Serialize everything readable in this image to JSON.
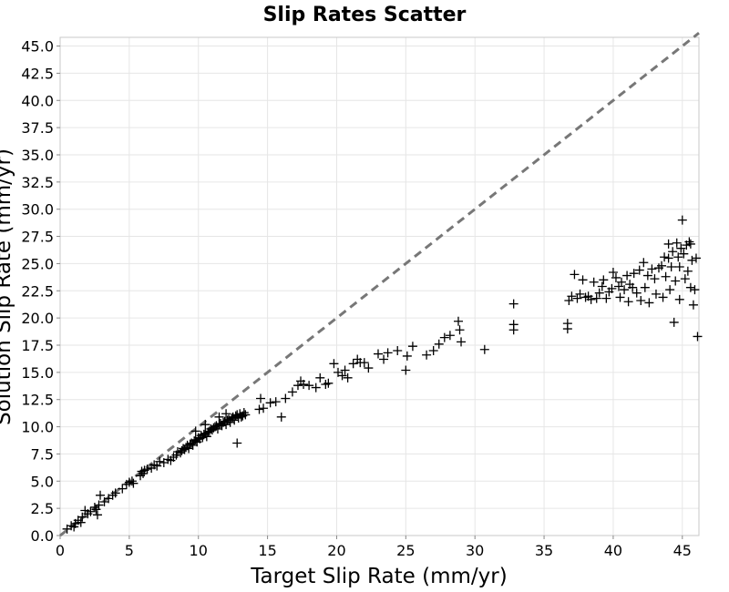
{
  "chart_data": {
    "type": "scatter",
    "title": "Slip Rates Scatter",
    "xlabel": "Target Slip Rate (mm/yr)",
    "ylabel": "Solution Slip Rate (mm/yr)",
    "xlim": [
      0,
      46.2
    ],
    "ylim": [
      0,
      45.8
    ],
    "x_ticks": [
      "0",
      "5",
      "10",
      "15",
      "20",
      "25",
      "30",
      "35",
      "40",
      "45"
    ],
    "y_ticks": [
      "0.0",
      "2.5",
      "5.0",
      "7.5",
      "10.0",
      "12.5",
      "15.0",
      "17.5",
      "20.0",
      "22.5",
      "25.0",
      "27.5",
      "30.0",
      "32.5",
      "35.0",
      "37.5",
      "40.0",
      "42.5",
      "45.0"
    ],
    "grid": true,
    "reference_line": {
      "style": "dashed",
      "color": "#777777",
      "x": [
        0,
        46.2
      ],
      "y": [
        0,
        46.2
      ]
    },
    "marker": "plus",
    "marker_color": "#000000",
    "points": [
      [
        0.5,
        0.6
      ],
      [
        0.8,
        0.9
      ],
      [
        1.0,
        0.8
      ],
      [
        1.1,
        1.1
      ],
      [
        1.3,
        1.4
      ],
      [
        1.5,
        1.2
      ],
      [
        1.6,
        1.7
      ],
      [
        1.8,
        2.3
      ],
      [
        2.0,
        2.0
      ],
      [
        2.2,
        2.2
      ],
      [
        2.5,
        2.6
      ],
      [
        2.6,
        2.4
      ],
      [
        2.8,
        2.8
      ],
      [
        2.9,
        3.7
      ],
      [
        2.7,
        1.9
      ],
      [
        3.2,
        3.1
      ],
      [
        3.5,
        3.4
      ],
      [
        3.8,
        3.7
      ],
      [
        4.0,
        3.9
      ],
      [
        4.5,
        4.3
      ],
      [
        4.8,
        4.7
      ],
      [
        5.0,
        4.9
      ],
      [
        5.2,
        5.0
      ],
      [
        5.3,
        4.8
      ],
      [
        5.8,
        5.5
      ],
      [
        5.9,
        5.9
      ],
      [
        6.0,
        5.7
      ],
      [
        6.1,
        6.0
      ],
      [
        6.3,
        6.1
      ],
      [
        6.6,
        6.2
      ],
      [
        6.8,
        6.5
      ],
      [
        7.0,
        6.4
      ],
      [
        7.2,
        6.8
      ],
      [
        7.5,
        6.7
      ],
      [
        7.8,
        7.0
      ],
      [
        8.0,
        6.9
      ],
      [
        8.2,
        7.2
      ],
      [
        8.4,
        7.4
      ],
      [
        8.5,
        7.7
      ],
      [
        8.7,
        7.6
      ],
      [
        8.8,
        7.8
      ],
      [
        8.9,
        8.0
      ],
      [
        9.0,
        7.9
      ],
      [
        9.1,
        8.1
      ],
      [
        9.2,
        8.3
      ],
      [
        9.3,
        8.0
      ],
      [
        9.4,
        8.4
      ],
      [
        9.5,
        8.5
      ],
      [
        9.6,
        8.3
      ],
      [
        9.7,
        8.7
      ],
      [
        9.8,
        8.8
      ],
      [
        9.9,
        8.6
      ],
      [
        10.0,
        9.0
      ],
      [
        10.1,
        8.9
      ],
      [
        10.2,
        9.2
      ],
      [
        10.3,
        9.0
      ],
      [
        10.4,
        9.3
      ],
      [
        10.5,
        9.4
      ],
      [
        10.6,
        9.1
      ],
      [
        10.7,
        9.5
      ],
      [
        10.8,
        9.6
      ],
      [
        10.9,
        9.8
      ],
      [
        11.0,
        9.7
      ],
      [
        11.1,
        9.9
      ],
      [
        11.2,
        10.0
      ],
      [
        11.3,
        10.1
      ],
      [
        11.4,
        9.8
      ],
      [
        11.5,
        10.2
      ],
      [
        11.6,
        10.3
      ],
      [
        11.7,
        10.1
      ],
      [
        11.8,
        10.4
      ],
      [
        11.9,
        10.5
      ],
      [
        12.0,
        10.2
      ],
      [
        12.1,
        10.6
      ],
      [
        12.2,
        10.7
      ],
      [
        12.3,
        10.4
      ],
      [
        12.4,
        10.8
      ],
      [
        12.5,
        10.9
      ],
      [
        12.6,
        10.6
      ],
      [
        12.7,
        11.0
      ],
      [
        12.8,
        11.1
      ],
      [
        12.9,
        10.8
      ],
      [
        13.0,
        11.2
      ],
      [
        13.1,
        10.9
      ],
      [
        13.2,
        11.0
      ],
      [
        13.3,
        11.3
      ],
      [
        13.4,
        11.1
      ],
      [
        12.8,
        8.5
      ],
      [
        11.5,
        10.9
      ],
      [
        12.0,
        11.2
      ],
      [
        10.5,
        10.2
      ],
      [
        9.8,
        9.6
      ],
      [
        14.5,
        12.6
      ],
      [
        14.4,
        11.6
      ],
      [
        14.7,
        11.7
      ],
      [
        15.2,
        12.2
      ],
      [
        15.6,
        12.3
      ],
      [
        16.0,
        10.9
      ],
      [
        16.3,
        12.6
      ],
      [
        16.8,
        13.2
      ],
      [
        17.2,
        13.8
      ],
      [
        17.4,
        14.2
      ],
      [
        17.6,
        13.9
      ],
      [
        18.0,
        13.8
      ],
      [
        18.5,
        13.6
      ],
      [
        18.8,
        14.5
      ],
      [
        19.2,
        13.9
      ],
      [
        19.4,
        14.0
      ],
      [
        19.8,
        15.8
      ],
      [
        20.1,
        15.0
      ],
      [
        20.4,
        14.7
      ],
      [
        20.6,
        15.2
      ],
      [
        20.8,
        14.5
      ],
      [
        21.2,
        15.8
      ],
      [
        21.5,
        16.2
      ],
      [
        21.7,
        15.9
      ],
      [
        22.0,
        15.9
      ],
      [
        22.3,
        15.4
      ],
      [
        23.0,
        16.7
      ],
      [
        23.4,
        16.2
      ],
      [
        23.7,
        16.8
      ],
      [
        24.4,
        17.0
      ],
      [
        25.0,
        15.2
      ],
      [
        25.1,
        16.5
      ],
      [
        25.5,
        17.4
      ],
      [
        26.5,
        16.6
      ],
      [
        27.0,
        17.0
      ],
      [
        27.4,
        17.6
      ],
      [
        27.8,
        18.2
      ],
      [
        28.2,
        18.4
      ],
      [
        28.8,
        19.7
      ],
      [
        28.9,
        18.9
      ],
      [
        29.0,
        17.8
      ],
      [
        30.7,
        17.1
      ],
      [
        32.8,
        21.3
      ],
      [
        32.8,
        19.4
      ],
      [
        32.8,
        18.9
      ],
      [
        36.7,
        19.5
      ],
      [
        36.7,
        19.0
      ],
      [
        36.8,
        21.6
      ],
      [
        37.0,
        22.0
      ],
      [
        37.2,
        24.0
      ],
      [
        37.4,
        21.8
      ],
      [
        37.6,
        22.2
      ],
      [
        37.8,
        23.5
      ],
      [
        38.0,
        21.9
      ],
      [
        38.2,
        22.0
      ],
      [
        38.4,
        21.7
      ],
      [
        38.6,
        23.3
      ],
      [
        38.8,
        21.8
      ],
      [
        39.0,
        22.3
      ],
      [
        39.2,
        22.9
      ],
      [
        39.3,
        23.5
      ],
      [
        39.5,
        21.8
      ],
      [
        39.7,
        22.4
      ],
      [
        39.9,
        22.7
      ],
      [
        40.0,
        24.2
      ],
      [
        40.2,
        23.7
      ],
      [
        40.4,
        22.9
      ],
      [
        40.5,
        21.9
      ],
      [
        40.6,
        23.3
      ],
      [
        40.8,
        22.6
      ],
      [
        41.0,
        23.9
      ],
      [
        41.1,
        21.5
      ],
      [
        41.2,
        23.1
      ],
      [
        41.4,
        22.8
      ],
      [
        41.5,
        24.1
      ],
      [
        41.7,
        22.3
      ],
      [
        41.9,
        24.4
      ],
      [
        42.0,
        21.6
      ],
      [
        42.2,
        25.1
      ],
      [
        42.3,
        22.8
      ],
      [
        42.5,
        23.9
      ],
      [
        42.6,
        21.4
      ],
      [
        42.8,
        24.5
      ],
      [
        43.0,
        23.6
      ],
      [
        43.1,
        22.2
      ],
      [
        43.3,
        24.6
      ],
      [
        43.5,
        24.8
      ],
      [
        43.6,
        21.9
      ],
      [
        43.8,
        23.8
      ],
      [
        44.0,
        25.5
      ],
      [
        44.1,
        22.6
      ],
      [
        44.2,
        24.7
      ],
      [
        44.3,
        26.1
      ],
      [
        44.4,
        19.6
      ],
      [
        44.5,
        23.4
      ],
      [
        44.6,
        26.9
      ],
      [
        44.7,
        25.6
      ],
      [
        44.8,
        21.7
      ],
      [
        44.9,
        26.4
      ],
      [
        45.0,
        29.0
      ],
      [
        45.1,
        25.9
      ],
      [
        45.2,
        23.6
      ],
      [
        45.3,
        26.7
      ],
      [
        45.4,
        24.3
      ],
      [
        45.5,
        27.0
      ],
      [
        45.6,
        22.8
      ],
      [
        45.7,
        25.3
      ],
      [
        45.8,
        21.2
      ],
      [
        45.9,
        22.6
      ],
      [
        46.0,
        25.5
      ],
      [
        46.1,
        18.3
      ],
      [
        44.0,
        26.8
      ],
      [
        43.7,
        25.6
      ],
      [
        45.6,
        26.8
      ],
      [
        44.8,
        24.7
      ]
    ]
  }
}
